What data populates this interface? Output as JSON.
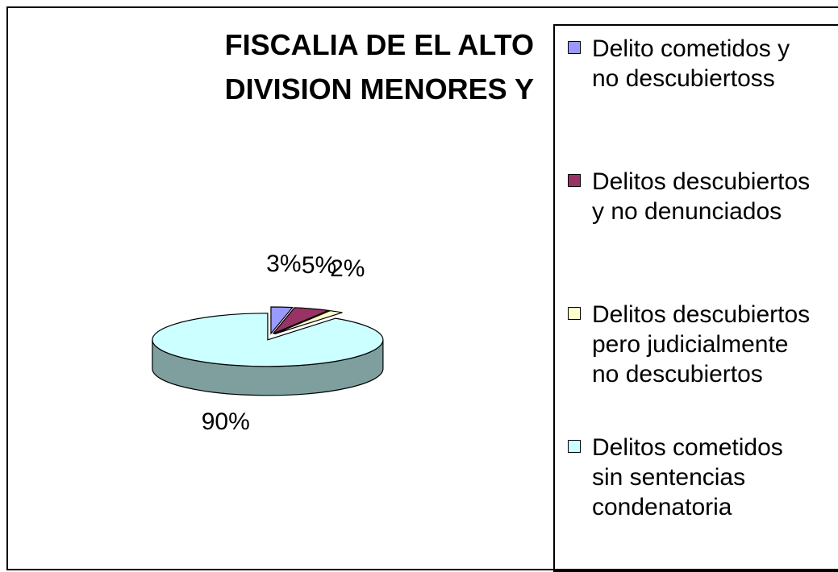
{
  "chart_data": {
    "type": "pie",
    "title": [
      "FISCALIA DE EL ALTO",
      "DIVISION MENORES Y"
    ],
    "categories": [
      "Delito cometidos y no descubiertoss",
      "Delitos descubiertos y no denunciados",
      "Delitos descubiertos pero judicialmente no descubiertos",
      "Delitos cometidos sin sentencias condenatoria"
    ],
    "values": [
      3,
      5,
      2,
      90
    ],
    "value_labels": [
      "3%",
      "5%",
      "2%",
      "90%"
    ],
    "colors": [
      "#9999ff",
      "#993366",
      "#ffffcc",
      "#ccffff"
    ],
    "side_colors": [
      "#6b6bb3",
      "#6b2447",
      "#b3b38f",
      "#7f9f9f"
    ],
    "legend": "right"
  }
}
